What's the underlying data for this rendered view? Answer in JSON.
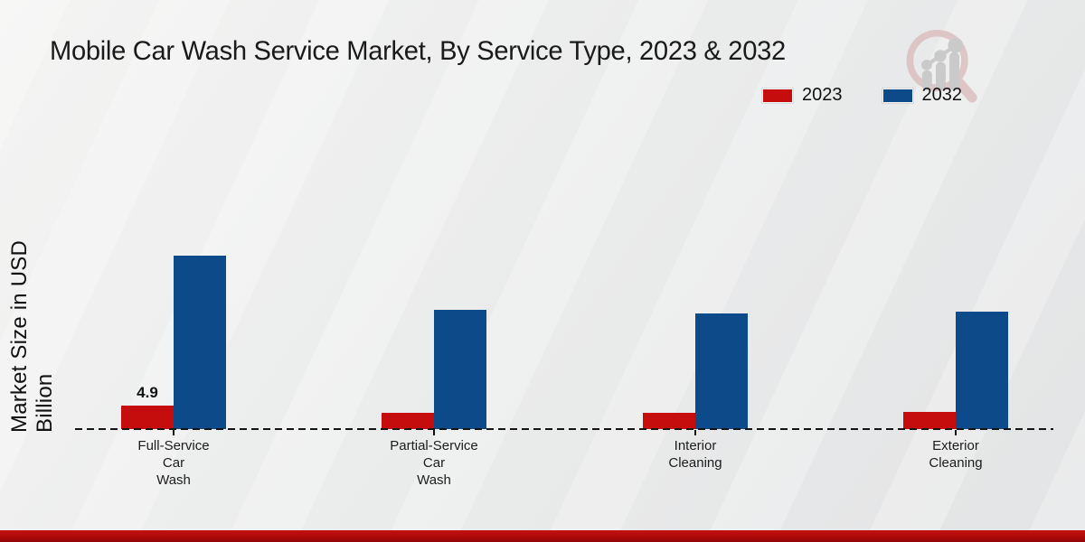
{
  "title": "Mobile Car Wash Service Market, By Service Type, 2023 & 2032",
  "y_axis_label": "Market Size in USD Billion",
  "legend": {
    "items": [
      {
        "label": "2023",
        "color": "#c50d0d"
      },
      {
        "label": "2032",
        "color": "#0d4a8a"
      }
    ]
  },
  "branding": {
    "logo_icon": "magnifier-bar-chart-logo",
    "ring_color": "#dec2c2",
    "glyph_color": "#c7c7c7"
  },
  "accents": {
    "footer_color": "#b00a0a"
  },
  "chart_data": {
    "type": "bar",
    "title": "Mobile Car Wash Service Market, By Service Type, 2023 & 2032",
    "xlabel": "",
    "ylabel": "Market Size in USD Billion",
    "categories": [
      "Full-Service Car Wash",
      "Partial-Service Car Wash",
      "Interior Cleaning",
      "Exterior Cleaning"
    ],
    "category_labels_multiline": [
      "Full-Service\nCar\nWash",
      "Partial-Service\nCar\nWash",
      "Interior\nCleaning",
      "Exterior\nCleaning"
    ],
    "series": [
      {
        "name": "2023",
        "color": "#c50d0d",
        "values": [
          4.9,
          3.4,
          3.4,
          3.6
        ],
        "data_labels": [
          "4.9",
          "",
          "",
          ""
        ]
      },
      {
        "name": "2032",
        "color": "#0d4a8a",
        "values": [
          36.2,
          24.9,
          24.1,
          24.5
        ],
        "data_labels": [
          "",
          "",
          "",
          ""
        ]
      }
    ],
    "ylim": [
      0,
      40
    ],
    "y_axis_ticks_visible": false,
    "grid": false,
    "baseline_style": "dashed",
    "legend_position": "top-right"
  }
}
